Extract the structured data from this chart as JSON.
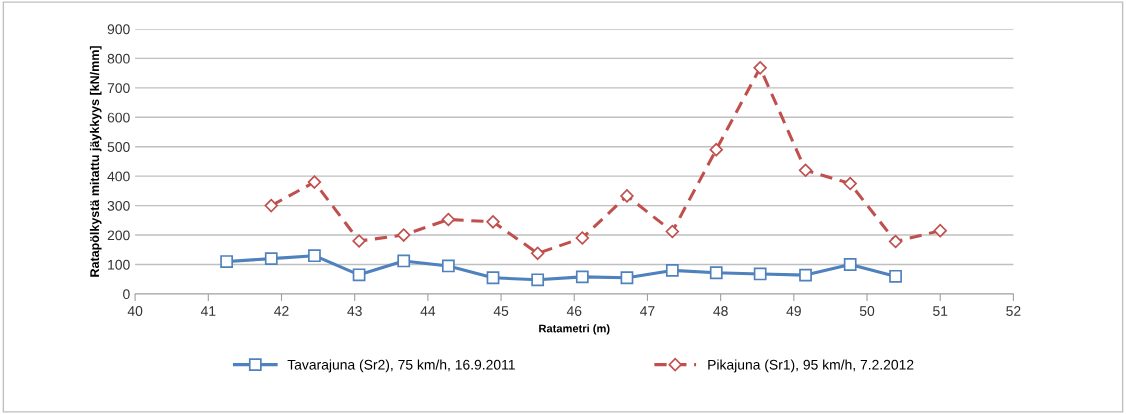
{
  "chart_data": {
    "type": "line",
    "xlabel": "Ratametri (m)",
    "ylabel": "Ratapölkystä mitattu jäykkyys [kN/mm]",
    "xlim": [
      40,
      52
    ],
    "xticks": [
      40,
      41,
      42,
      43,
      44,
      45,
      46,
      47,
      48,
      49,
      50,
      51,
      52
    ],
    "ylim": [
      0,
      900
    ],
    "yticks": [
      0,
      100,
      200,
      300,
      400,
      500,
      600,
      700,
      800,
      900
    ],
    "grid": "y",
    "legend": "bottom",
    "series": [
      {
        "name": "Tavarajuna (Sr2), 75 km/h, 16.9.2011",
        "color": "#4f81bd",
        "marker": "square",
        "line_style": "solid",
        "x": [
          41.25,
          41.86,
          42.45,
          43.06,
          43.67,
          44.28,
          44.89,
          45.5,
          46.11,
          46.72,
          47.34,
          47.94,
          48.54,
          49.16,
          49.77,
          50.39
        ],
        "values": [
          110,
          120,
          130,
          65,
          112,
          95,
          55,
          48,
          58,
          55,
          80,
          72,
          68,
          64,
          100,
          60
        ]
      },
      {
        "name": "Pikajuna (Sr1), 95 km/h, 7.2.2012",
        "color": "#c0504d",
        "marker": "diamond",
        "line_style": "dashed",
        "x": [
          41.86,
          42.45,
          43.06,
          43.67,
          44.28,
          44.89,
          45.5,
          46.11,
          46.72,
          47.34,
          47.94,
          48.54,
          49.16,
          49.77,
          50.39,
          51.0
        ],
        "values": [
          300,
          380,
          180,
          200,
          253,
          245,
          138,
          190,
          333,
          212,
          490,
          768,
          420,
          375,
          178,
          215
        ]
      }
    ]
  }
}
